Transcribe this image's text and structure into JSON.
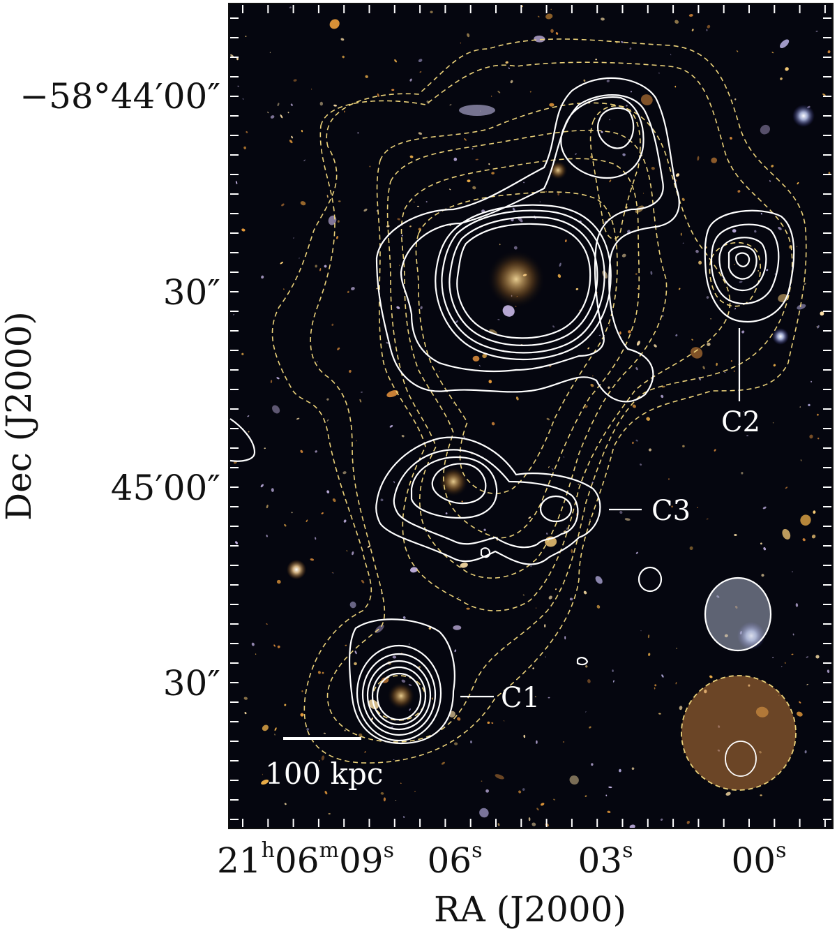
{
  "axes": {
    "xlabel": "RA (J2000)",
    "ylabel": "Dec (J2000)",
    "x_ticks": [
      {
        "base": "21",
        "sup1": "h",
        "mid": "06",
        "sup2": "m",
        "val": "09",
        "sup3": "s"
      },
      {
        "val": "06",
        "sup": "s"
      },
      {
        "val": "03",
        "sup": "s"
      },
      {
        "val": "00",
        "sup": "s"
      }
    ],
    "y_ticks": [
      "−58°44′00″",
      "30″",
      "45′00″",
      "30″"
    ]
  },
  "annotations": {
    "c1": "C1",
    "c2": "C2",
    "c3": "C3",
    "scale_bar": "100 kpc"
  },
  "colors": {
    "background": "#05060f",
    "solid_contour": "#ffffff",
    "dashed_contour": "#ecd27a",
    "frame": "#111111"
  }
}
